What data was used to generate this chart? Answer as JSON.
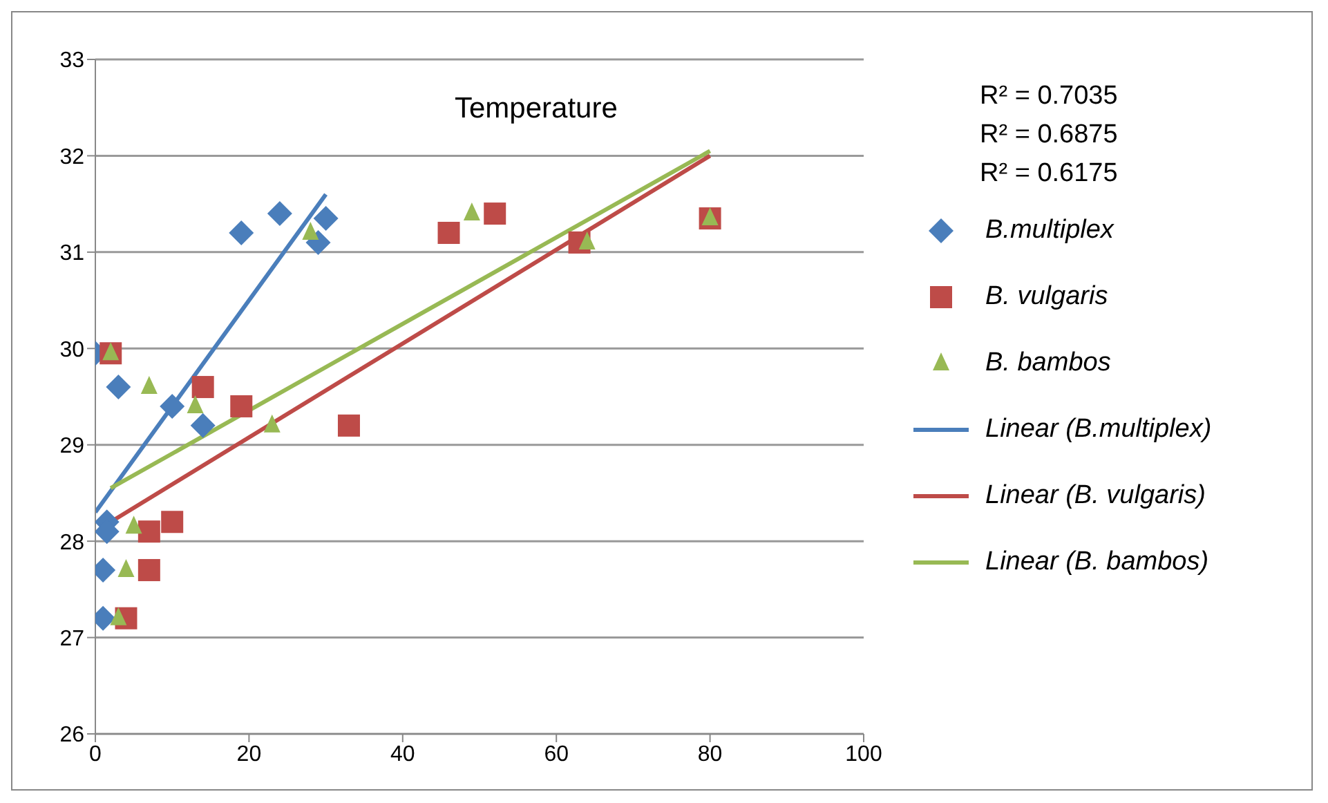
{
  "chart_data": {
    "type": "scatter",
    "title": "Temperature",
    "xlim": [
      0,
      100
    ],
    "xticks": [
      0,
      20,
      40,
      60,
      80,
      100
    ],
    "ylim": [
      26,
      33
    ],
    "yticks": [
      26,
      27,
      28,
      29,
      30,
      31,
      32,
      33
    ],
    "grid": "y",
    "legend": "right",
    "annotations": [
      "R² = 0.7035",
      "R² = 0.6875",
      "R² = 0.6175"
    ],
    "series": [
      {
        "name": "B.multiplex",
        "color": "#4a7ebb",
        "marker": "diamond",
        "x": [
          0,
          3,
          10,
          14,
          1.5,
          1.5,
          1,
          1,
          19,
          24,
          29,
          30
        ],
        "values": [
          29.95,
          29.6,
          29.4,
          29.2,
          28.2,
          28.1,
          27.7,
          27.2,
          31.2,
          31.4,
          31.1,
          31.35
        ]
      },
      {
        "name": "B. vulgaris",
        "color": "#be4b48",
        "marker": "square",
        "x": [
          2,
          14,
          19,
          33,
          7,
          10,
          7,
          4,
          46,
          52,
          63,
          80
        ],
        "values": [
          29.95,
          29.6,
          29.4,
          29.2,
          28.1,
          28.2,
          27.7,
          27.2,
          31.2,
          31.4,
          31.1,
          31.35
        ]
      },
      {
        "name": "B. bambos",
        "color": "#98b954",
        "marker": "triangle",
        "x": [
          2,
          7,
          13,
          23,
          5,
          4,
          3,
          28,
          49,
          64,
          80
        ],
        "values": [
          29.95,
          29.6,
          29.4,
          29.2,
          28.15,
          27.7,
          27.2,
          31.2,
          31.4,
          31.1,
          31.35
        ]
      },
      {
        "name": "Linear (B.multiplex)",
        "type": "line",
        "color": "#4a7ebb",
        "marker": "none",
        "x": [
          0,
          30
        ],
        "values": [
          28.3,
          31.6
        ]
      },
      {
        "name": "Linear (B. vulgaris)",
        "type": "line",
        "color": "#be4b48",
        "marker": "none",
        "x": [
          2,
          80
        ],
        "values": [
          28.2,
          32.0
        ]
      },
      {
        "name": "Linear (B. bambos)",
        "type": "line",
        "color": "#98b954",
        "marker": "none",
        "x": [
          2,
          80
        ],
        "values": [
          28.55,
          32.05
        ]
      }
    ]
  }
}
